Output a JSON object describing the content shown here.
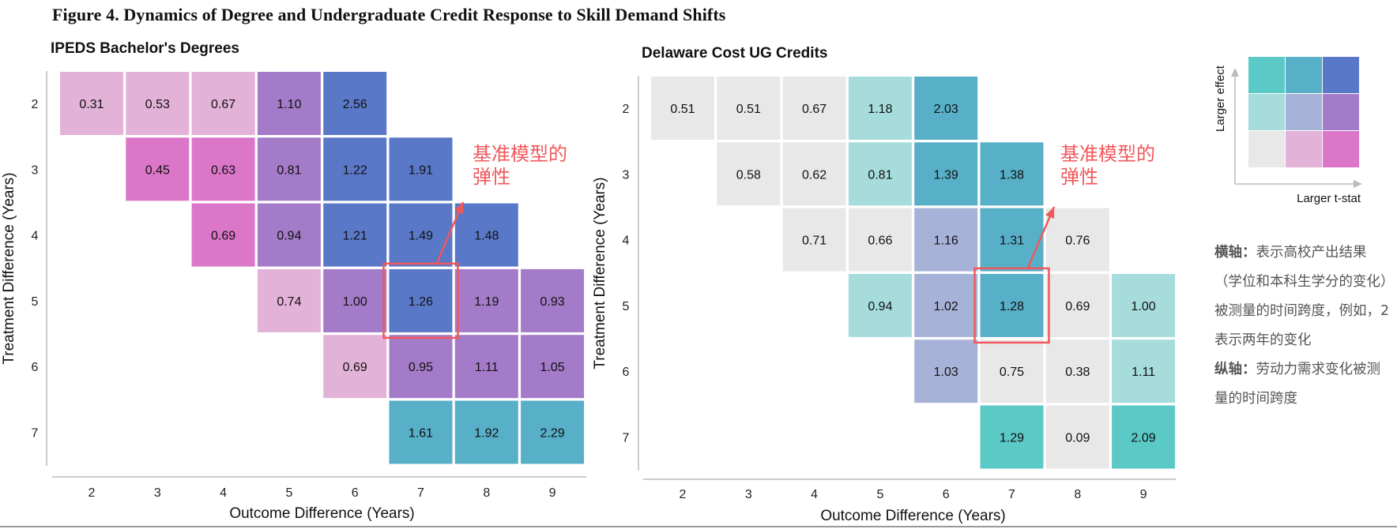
{
  "figure_title": "Figure 4. Dynamics of Degree and Undergraduate Credit Response to Skill Demand Shifts",
  "callout_text": [
    "基准模型的",
    "弹性"
  ],
  "notes": {
    "x_label": "横轴：",
    "x_text": "表示高校产出结果（学位和本科生学分的变化）被测量的时间跨度，例如，2表示两年的变化",
    "y_label": "纵轴：",
    "y_text": "劳动力需求变化被测量的时间跨度"
  },
  "legend": {
    "y_label": "Larger effect",
    "x_label": "Larger t-stat",
    "colors": [
      [
        "#5bc9c6",
        "#58afc8",
        "#5a78c8"
      ],
      [
        "#a6dcdb",
        "#a7b2d8",
        "#a47bc8"
      ],
      [
        "#e8e8e8",
        "#e3b2d8",
        "#db76c8"
      ]
    ]
  },
  "palette": {
    "A": "#e8e8e8",
    "B": "#e3b2d8",
    "C": "#db76c8",
    "D": "#a6dcdb",
    "E": "#a7b2d8",
    "F": "#a47bc8",
    "G": "#5bc9c6",
    "H": "#58afc8",
    "I": "#5a78c8",
    "highlight": "#f0585c"
  },
  "chart_data": [
    {
      "type": "heatmap",
      "title": "IPEDS Bachelor's Degrees",
      "xlabel": "Outcome Difference (Years)",
      "ylabel": "Treatment Difference (Years)",
      "x": [
        2,
        3,
        4,
        5,
        6,
        7,
        8,
        9
      ],
      "y": [
        2,
        3,
        4,
        5,
        6,
        7
      ],
      "highlight": {
        "x": 7,
        "y": 5
      },
      "cells": [
        {
          "x": 2,
          "y": 2,
          "value": "0.31",
          "color": "B"
        },
        {
          "x": 3,
          "y": 2,
          "value": "0.53",
          "color": "B"
        },
        {
          "x": 4,
          "y": 2,
          "value": "0.67",
          "color": "B"
        },
        {
          "x": 5,
          "y": 2,
          "value": "1.10",
          "color": "F"
        },
        {
          "x": 6,
          "y": 2,
          "value": "2.56",
          "color": "I"
        },
        {
          "x": 3,
          "y": 3,
          "value": "0.45",
          "color": "C"
        },
        {
          "x": 4,
          "y": 3,
          "value": "0.63",
          "color": "C"
        },
        {
          "x": 5,
          "y": 3,
          "value": "0.81",
          "color": "F"
        },
        {
          "x": 6,
          "y": 3,
          "value": "1.22",
          "color": "I"
        },
        {
          "x": 7,
          "y": 3,
          "value": "1.91",
          "color": "I"
        },
        {
          "x": 4,
          "y": 4,
          "value": "0.69",
          "color": "C"
        },
        {
          "x": 5,
          "y": 4,
          "value": "0.94",
          "color": "F"
        },
        {
          "x": 6,
          "y": 4,
          "value": "1.21",
          "color": "I"
        },
        {
          "x": 7,
          "y": 4,
          "value": "1.49",
          "color": "I"
        },
        {
          "x": 8,
          "y": 4,
          "value": "1.48",
          "color": "I"
        },
        {
          "x": 5,
          "y": 5,
          "value": "0.74",
          "color": "B"
        },
        {
          "x": 6,
          "y": 5,
          "value": "1.00",
          "color": "F"
        },
        {
          "x": 7,
          "y": 5,
          "value": "1.26",
          "color": "I"
        },
        {
          "x": 8,
          "y": 5,
          "value": "1.19",
          "color": "F"
        },
        {
          "x": 9,
          "y": 5,
          "value": "0.93",
          "color": "F"
        },
        {
          "x": 6,
          "y": 6,
          "value": "0.69",
          "color": "B"
        },
        {
          "x": 7,
          "y": 6,
          "value": "0.95",
          "color": "F"
        },
        {
          "x": 8,
          "y": 6,
          "value": "1.11",
          "color": "F"
        },
        {
          "x": 9,
          "y": 6,
          "value": "1.05",
          "color": "F"
        },
        {
          "x": 7,
          "y": 7,
          "value": "1.61",
          "color": "H"
        },
        {
          "x": 8,
          "y": 7,
          "value": "1.92",
          "color": "H"
        },
        {
          "x": 9,
          "y": 7,
          "value": "2.29",
          "color": "H"
        }
      ]
    },
    {
      "type": "heatmap",
      "title": "Delaware Cost UG Credits",
      "xlabel": "Outcome Difference (Years)",
      "ylabel": "Treatment Difference (Years)",
      "x": [
        2,
        3,
        4,
        5,
        6,
        7,
        8,
        9
      ],
      "y": [
        2,
        3,
        4,
        5,
        6,
        7
      ],
      "highlight": {
        "x": 7,
        "y": 5
      },
      "cells": [
        {
          "x": 2,
          "y": 2,
          "value": "0.51",
          "color": "A"
        },
        {
          "x": 3,
          "y": 2,
          "value": "0.51",
          "color": "A"
        },
        {
          "x": 4,
          "y": 2,
          "value": "0.67",
          "color": "A"
        },
        {
          "x": 5,
          "y": 2,
          "value": "1.18",
          "color": "D"
        },
        {
          "x": 6,
          "y": 2,
          "value": "2.03",
          "color": "H"
        },
        {
          "x": 3,
          "y": 3,
          "value": "0.58",
          "color": "A"
        },
        {
          "x": 4,
          "y": 3,
          "value": "0.62",
          "color": "A"
        },
        {
          "x": 5,
          "y": 3,
          "value": "0.81",
          "color": "D"
        },
        {
          "x": 6,
          "y": 3,
          "value": "1.39",
          "color": "H"
        },
        {
          "x": 7,
          "y": 3,
          "value": "1.38",
          "color": "H"
        },
        {
          "x": 4,
          "y": 4,
          "value": "0.71",
          "color": "A"
        },
        {
          "x": 5,
          "y": 4,
          "value": "0.66",
          "color": "A"
        },
        {
          "x": 6,
          "y": 4,
          "value": "1.16",
          "color": "E"
        },
        {
          "x": 7,
          "y": 4,
          "value": "1.31",
          "color": "H"
        },
        {
          "x": 8,
          "y": 4,
          "value": "0.76",
          "color": "A"
        },
        {
          "x": 5,
          "y": 5,
          "value": "0.94",
          "color": "D"
        },
        {
          "x": 6,
          "y": 5,
          "value": "1.02",
          "color": "E"
        },
        {
          "x": 7,
          "y": 5,
          "value": "1.28",
          "color": "H"
        },
        {
          "x": 8,
          "y": 5,
          "value": "0.69",
          "color": "A"
        },
        {
          "x": 9,
          "y": 5,
          "value": "1.00",
          "color": "D"
        },
        {
          "x": 6,
          "y": 6,
          "value": "1.03",
          "color": "E"
        },
        {
          "x": 7,
          "y": 6,
          "value": "0.75",
          "color": "A"
        },
        {
          "x": 8,
          "y": 6,
          "value": "0.38",
          "color": "A"
        },
        {
          "x": 9,
          "y": 6,
          "value": "1.11",
          "color": "D"
        },
        {
          "x": 7,
          "y": 7,
          "value": "1.29",
          "color": "G"
        },
        {
          "x": 8,
          "y": 7,
          "value": "0.09",
          "color": "A"
        },
        {
          "x": 9,
          "y": 7,
          "value": "2.09",
          "color": "G"
        }
      ]
    }
  ]
}
